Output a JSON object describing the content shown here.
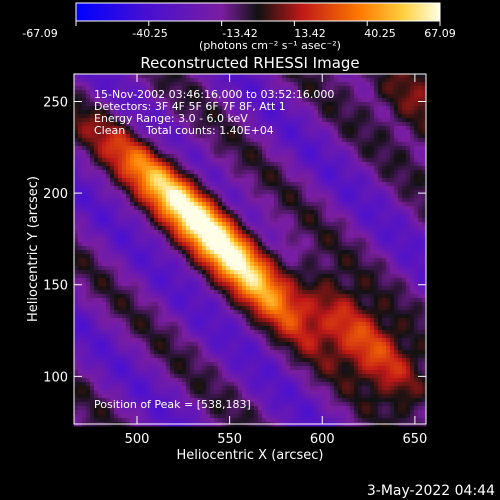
{
  "chart_data": {
    "type": "heatmap",
    "title": "Reconstructed RHESSI Image",
    "xlabel": "Heliocentric X (arcsec)",
    "ylabel": "Heliocentric Y (arcsec)",
    "xlim": [
      466,
      656
    ],
    "ylim": [
      74,
      265
    ],
    "xticks": [
      500,
      550,
      600,
      650
    ],
    "yticks": [
      100,
      150,
      200,
      250
    ],
    "colorbar": {
      "ticks": [
        "-67.09",
        "-40.25",
        "-13.42",
        "13.42",
        "40.25",
        "67.09"
      ],
      "unit_label": "(photons cm⁻² s⁻¹ asec⁻²)",
      "range": [
        -67.09,
        67.09
      ]
    },
    "annotations": {
      "time_range": "15-Nov-2002 03:46:16.000 to 03:52:16.000",
      "detectors": "Detectors: 3F 4F 5F 6F 7F 8F, Att 1",
      "energy": "Energy Range: 3.0 - 6.0 keV",
      "clean": "Clean",
      "counts": "Total counts: 1.40E+04",
      "peak": "Position of Peak = [538,183]"
    },
    "peak": {
      "x": 538,
      "y": 183,
      "value": 67.09
    },
    "sources": [
      {
        "x": 538,
        "y": 183,
        "amplitude": 67
      },
      {
        "x": 505,
        "y": 215,
        "amplitude": 30
      },
      {
        "x": 565,
        "y": 150,
        "amplitude": 35
      },
      {
        "x": 632,
        "y": 110,
        "amplitude": 50
      },
      {
        "x": 605,
        "y": 140,
        "amplitude": 25
      },
      {
        "x": 648,
        "y": 248,
        "amplitude": 42
      }
    ]
  },
  "footer": {
    "timestamp": "3-May-2022 04:44"
  }
}
